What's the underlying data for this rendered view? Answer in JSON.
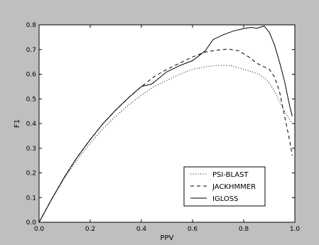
{
  "chart_data": {
    "type": "line",
    "title": "",
    "xlabel": "PPV",
    "ylabel": "F1",
    "xlim": [
      0.0,
      1.0
    ],
    "ylim": [
      0.0,
      0.8
    ],
    "xticks": [
      "0.0",
      "0.2",
      "0.4",
      "0.6",
      "0.8",
      "1.0"
    ],
    "yticks": [
      "0.0",
      "0.1",
      "0.2",
      "0.3",
      "0.4",
      "0.5",
      "0.6",
      "0.7",
      "0.8"
    ],
    "grid": false,
    "legend_position": "lower-right",
    "series": [
      {
        "name": "PSI-BLAST",
        "style": "dotted",
        "color": "#000000",
        "x": [
          0.0,
          0.05,
          0.1,
          0.15,
          0.2,
          0.25,
          0.3,
          0.35,
          0.4,
          0.45,
          0.5,
          0.55,
          0.6,
          0.65,
          0.7,
          0.75,
          0.8,
          0.83,
          0.86,
          0.88,
          0.9,
          0.92,
          0.94,
          0.96,
          0.98,
          0.99
        ],
        "y": [
          0.0,
          0.095,
          0.18,
          0.255,
          0.32,
          0.38,
          0.43,
          0.475,
          0.515,
          0.55,
          0.575,
          0.6,
          0.62,
          0.63,
          0.636,
          0.635,
          0.62,
          0.61,
          0.6,
          0.585,
          0.565,
          0.53,
          0.49,
          0.45,
          0.415,
          0.4
        ]
      },
      {
        "name": "JACKHMMER",
        "style": "dashed",
        "color": "#000000",
        "x": [
          0.0,
          0.05,
          0.1,
          0.15,
          0.2,
          0.25,
          0.3,
          0.35,
          0.4,
          0.45,
          0.5,
          0.55,
          0.6,
          0.65,
          0.7,
          0.74,
          0.78,
          0.82,
          0.85,
          0.88,
          0.9,
          0.92,
          0.94,
          0.96,
          0.98,
          0.99
        ],
        "y": [
          0.0,
          0.095,
          0.185,
          0.265,
          0.335,
          0.4,
          0.455,
          0.505,
          0.55,
          0.59,
          0.62,
          0.645,
          0.67,
          0.69,
          0.698,
          0.702,
          0.695,
          0.67,
          0.645,
          0.63,
          0.62,
          0.59,
          0.53,
          0.43,
          0.33,
          0.27
        ]
      },
      {
        "name": "IGLOSS",
        "style": "solid",
        "color": "#000000",
        "x": [
          0.0,
          0.05,
          0.1,
          0.15,
          0.2,
          0.25,
          0.3,
          0.35,
          0.4,
          0.44,
          0.5,
          0.55,
          0.6,
          0.65,
          0.68,
          0.72,
          0.76,
          0.8,
          0.83,
          0.85,
          0.88,
          0.9,
          0.92,
          0.94,
          0.96,
          0.98,
          0.99
        ],
        "y": [
          0.0,
          0.095,
          0.185,
          0.265,
          0.335,
          0.4,
          0.455,
          0.505,
          0.55,
          0.56,
          0.61,
          0.635,
          0.655,
          0.695,
          0.74,
          0.76,
          0.775,
          0.785,
          0.79,
          0.786,
          0.795,
          0.77,
          0.72,
          0.65,
          0.57,
          0.47,
          0.43
        ]
      }
    ]
  }
}
